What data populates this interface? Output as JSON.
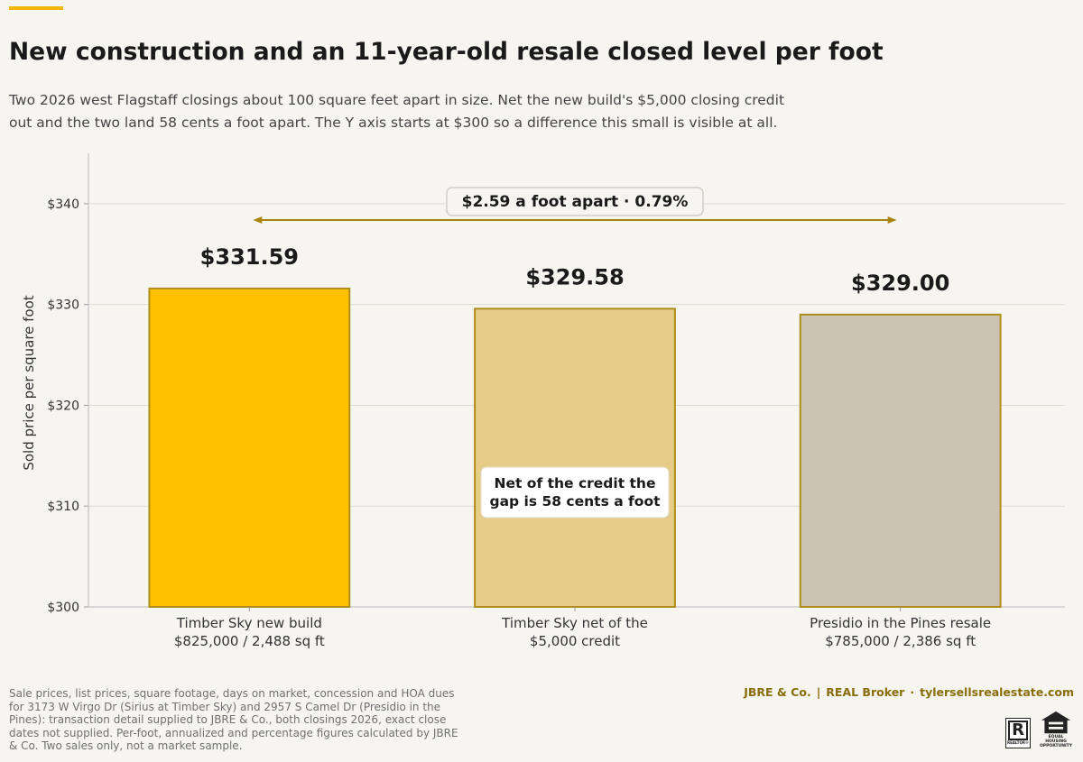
{
  "header": {
    "title": "New construction and an 11-year-old resale closed level per foot",
    "subtitle": "Two 2026 west Flagstaff closings about 100 square feet apart in size. Net the new build's $5,000 closing credit out and the two land 58 cents a foot apart. The Y axis starts at $300 so a difference this small is visible at all."
  },
  "chart_data": {
    "type": "bar",
    "ylabel": "Sold price per square foot",
    "ylim": [
      300,
      345
    ],
    "yticks": [
      300,
      310,
      320,
      330,
      340
    ],
    "ytick_labels": [
      "$300",
      "$310",
      "$320",
      "$330",
      "$340"
    ],
    "grid": true,
    "bars": [
      {
        "label_line1": "Timber Sky new build",
        "label_line2": "$825,000 / 2,488 sq ft",
        "value": 331.59,
        "value_label": "$331.59",
        "color": "#ffc000",
        "edge": "#b08d1a"
      },
      {
        "label_line1": "Timber Sky net of the",
        "label_line2": "$5,000 credit",
        "value": 329.58,
        "value_label": "$329.58",
        "color": "#e6cc87",
        "edge": "#b08d1a"
      },
      {
        "label_line1": "Presidio in the Pines resale",
        "label_line2": "$785,000 / 2,386 sq ft",
        "value": 329.0,
        "value_label": "$329.00",
        "color": "#cbc4b3",
        "edge": "#b08d1a"
      }
    ],
    "annotations": {
      "span_label": "$2.59 a foot apart  ·  0.79%",
      "span_color": "#a8830f",
      "note_line1": "Net of the credit the",
      "note_line2": "gap is 58 cents a foot"
    }
  },
  "footer": {
    "note": "Sale prices, list prices, square footage, days on market, concession and HOA dues for 3173 W Virgo Dr (Sirius at Timber Sky) and 2957 S Camel Dr (Presidio in the Pines): transaction detail supplied to JBRE & Co., both closings 2026, exact close dates not supplied. Per-foot, annualized and percentage figures calculated by JBRE & Co. Two sales only, not a market sample.",
    "brand_name": "JBRE & Co.",
    "brand_sep": "|",
    "brokerage": "REAL Broker",
    "dot": "·",
    "website": "tylersellsrealestate.com",
    "realtor_text": "REALTOR®",
    "eho_text": "EQUAL HOUSING OPPORTUNITY"
  }
}
